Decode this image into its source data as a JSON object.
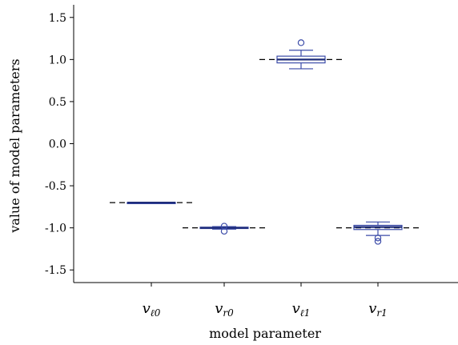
{
  "chart_data": {
    "type": "box",
    "xlabel": "model parameter",
    "ylabel": "value of model parameters",
    "ylim": [
      -1.65,
      1.65
    ],
    "yticks": [
      "-1.5",
      "-1.0",
      "-0.5",
      "0.0",
      "0.5",
      "1.0",
      "1.5"
    ],
    "ytick_values": [
      -1.5,
      -1.0,
      -0.5,
      0.0,
      0.5,
      1.0,
      1.5
    ],
    "categories": [
      {
        "base": "v",
        "sub": "ℓ0"
      },
      {
        "base": "v",
        "sub": "r0"
      },
      {
        "base": "v",
        "sub": "ℓ1"
      },
      {
        "base": "v",
        "sub": "r1"
      }
    ],
    "boxes": [
      {
        "whisker_low": -0.705,
        "q1": -0.702,
        "median": -0.7,
        "q3": -0.698,
        "whisker_high": -0.695,
        "outliers": [],
        "true_value": -0.7
      },
      {
        "whisker_low": -1.015,
        "q1": -1.008,
        "median": -1.0,
        "q3": -0.992,
        "whisker_high": -0.985,
        "outliers": [
          -1.04,
          -0.98
        ],
        "true_value": -1.0
      },
      {
        "whisker_low": 0.89,
        "q1": 0.96,
        "median": 1.0,
        "q3": 1.04,
        "whisker_high": 1.11,
        "outliers": [
          1.2
        ],
        "true_value": 1.0
      },
      {
        "whisker_low": -1.09,
        "q1": -1.02,
        "median": -0.99,
        "q3": -0.97,
        "whisker_high": -0.93,
        "outliers": [
          -1.12,
          -1.16
        ],
        "true_value": -1.0
      }
    ],
    "colors": {
      "box": "#3b4ba8",
      "median": "#1f2d7a",
      "reference": "#000000",
      "axis": "#000000"
    },
    "reference_line_style": "dashed",
    "grid": false
  }
}
